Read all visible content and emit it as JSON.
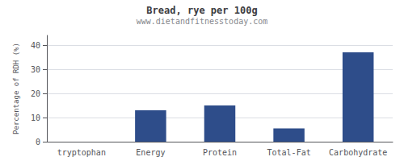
{
  "chart_data": {
    "type": "bar",
    "title": "Bread, rye per 100g",
    "subtitle": "www.dietandfitnesstoday.com",
    "categories": [
      "tryptophan",
      "Energy",
      "Protein",
      "Total-Fat",
      "Carbohydrate"
    ],
    "values": [
      0.0,
      13.0,
      15.0,
      5.5,
      37.0
    ],
    "color": "#2e4d8a",
    "ylabel": "Percentage of RDH (%)",
    "ylim": [
      0,
      44
    ],
    "yticks": [
      0,
      10,
      20,
      30,
      40
    ],
    "grid": true
  }
}
